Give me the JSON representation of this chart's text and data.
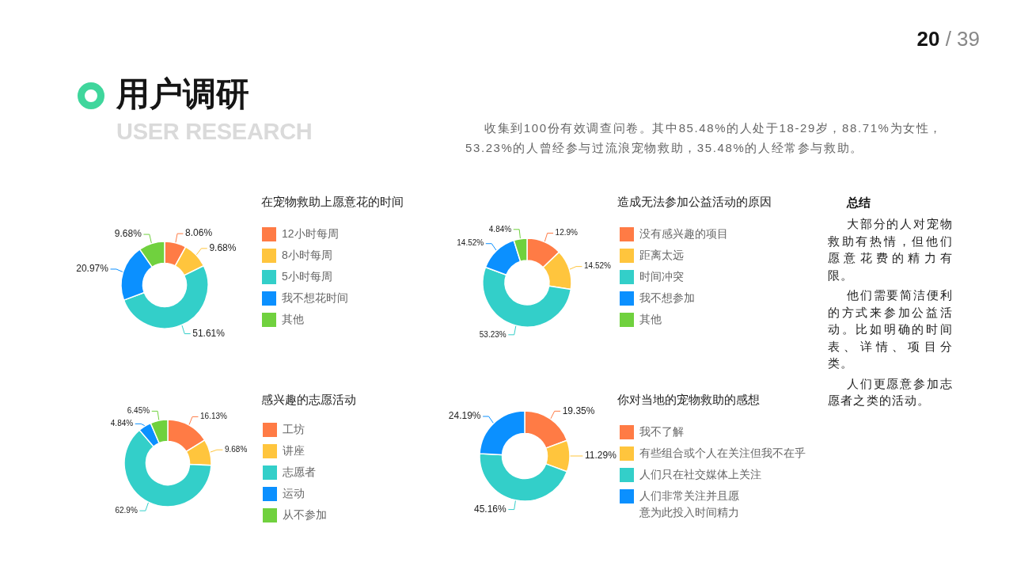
{
  "chart_data": [
    {
      "type": "other",
      "title": "用户调研",
      "subtitle": "USER RESEARCH",
      "annotations": [
        "20 / 39",
        "收集到100份有效调查问卷。其中85.48%的人处于18-29岁，88.71%为女性，53.23%的人曾经参与过流浪宠物救助，35.48%的人经常参与救助。"
      ]
    },
    {
      "type": "donut",
      "title": "在宠物救助上愿意花的时间",
      "categories": [
        "12小时每周",
        "8小时每周",
        "5小时每周",
        "我不想花时间",
        "其他"
      ],
      "values": [
        8.06,
        9.68,
        51.61,
        20.97,
        9.68
      ],
      "value_labels": [
        "8.06%",
        "9.68%",
        "51.61%",
        "20.97%",
        "9.68%"
      ],
      "colors": [
        "#ff7b45",
        "#ffc53d",
        "#33cfc9",
        "#0b90ff",
        "#70d13e"
      ],
      "legend": "right"
    },
    {
      "type": "donut",
      "title": "造成无法参加公益活动的原因",
      "categories": [
        "没有感兴趣的项目",
        "距离太远",
        "时间冲突",
        "我不想参加",
        "其他"
      ],
      "values": [
        12.9,
        14.52,
        53.23,
        14.52,
        4.84
      ],
      "value_labels": [
        "12.9%",
        "14.52%",
        "53.23%",
        "14.52%",
        "4.84%"
      ],
      "colors": [
        "#ff7b45",
        "#ffc53d",
        "#33cfc9",
        "#0b90ff",
        "#70d13e"
      ],
      "legend": "right"
    },
    {
      "type": "donut",
      "title": "感兴趣的志愿活动",
      "categories": [
        "工坊",
        "讲座",
        "志愿者",
        "运动",
        "从不参加"
      ],
      "values": [
        16.13,
        9.68,
        62.9,
        4.84,
        6.45
      ],
      "value_labels": [
        "16.13%",
        "9.68%",
        "62.9%",
        "4.84%",
        "6.45%"
      ],
      "colors": [
        "#ff7b45",
        "#ffc53d",
        "#33cfc9",
        "#0b90ff",
        "#70d13e"
      ],
      "legend": "right"
    },
    {
      "type": "donut",
      "title": "你对当地的宠物救助的感想",
      "categories": [
        "我不了解",
        "有些组合或个人在关注但我不在乎",
        "人们只在社交媒体上关注",
        "人们非常关注并且愿意为此投入时间精力"
      ],
      "values": [
        19.35,
        11.29,
        45.16,
        24.19
      ],
      "value_labels": [
        "19.35%",
        "11.29%",
        "45.16%",
        "24.19%"
      ],
      "colors": [
        "#ff7b45",
        "#ffc53d",
        "#33cfc9",
        "#0b90ff"
      ],
      "legend": "right"
    },
    {
      "type": "other",
      "title": "总结",
      "annotations": [
        "大部分的人对宠物救助有热情，但他们愿意花费的精力有限。",
        "他们需要简洁便利的方式来参加公益活动。比如明确的时间表、详情、项目分类。",
        "人们更愿意参加志愿者之类的活动。"
      ]
    }
  ]
}
